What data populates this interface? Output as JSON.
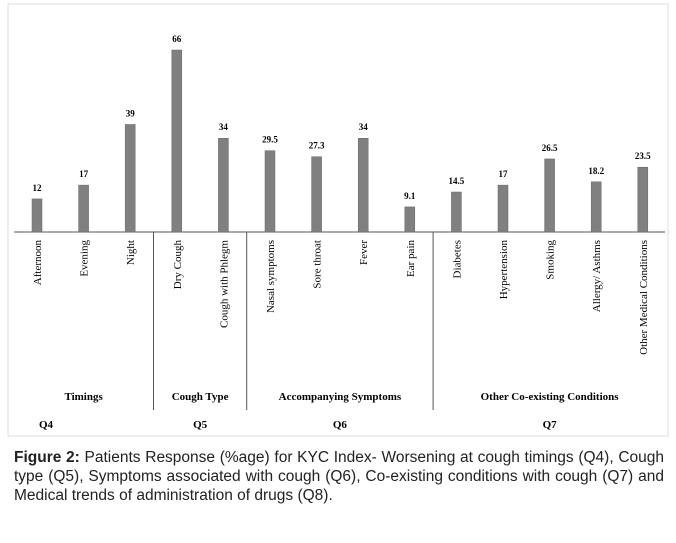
{
  "chart_data": {
    "type": "bar",
    "color": "#808080",
    "groups": [
      {
        "label": "Timings",
        "question": "Q4",
        "categories": [
          "Afternoon",
          "Evening",
          "Night"
        ],
        "values": [
          12,
          17,
          39
        ]
      },
      {
        "label": "Cough Type",
        "question": "Q5",
        "categories": [
          "Dry Cough",
          "Cough with Phlegm"
        ],
        "values": [
          66,
          34
        ]
      },
      {
        "label": "Accompanying Symptoms",
        "question": "Q6",
        "categories": [
          "Nasal symptoms",
          "Sore throat",
          "Fever",
          "Ear pain"
        ],
        "values": [
          29.5,
          27.3,
          34,
          9.1
        ]
      },
      {
        "label": "Other Co-existing Conditions",
        "question": "Q7",
        "categories": [
          "Diabetes",
          "Hypertension",
          "Smoking",
          "Allergy/ Asthms",
          "Other Medical Conditions"
        ],
        "values": [
          14.5,
          17,
          26.5,
          18.2,
          23.5
        ]
      }
    ]
  },
  "caption": {
    "label": "Figure 2:",
    "text": "Patients Response (%age) for KYC Index- Worsening at cough timings (Q4), Cough type (Q5), Symptoms associated with cough (Q6), Co-existing conditions with cough (Q7) and Medical trends of administration of drugs (Q8)."
  }
}
